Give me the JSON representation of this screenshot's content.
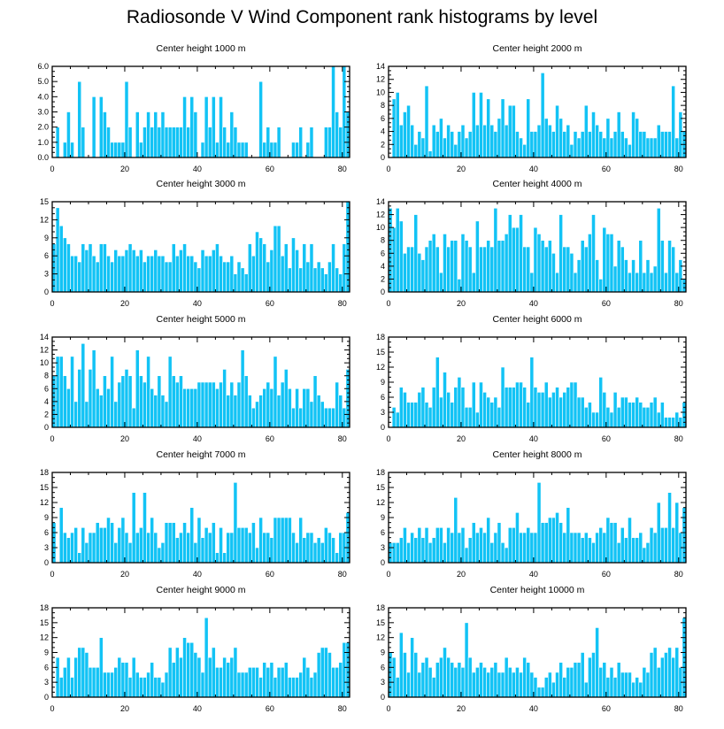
{
  "page": {
    "title": "Radiosonde V Wind Component rank histograms by level"
  },
  "chart_data": [
    {
      "type": "bar",
      "title": "Center height 1000 m",
      "xlim": [
        0,
        82
      ],
      "ylim": [
        0,
        6
      ],
      "xticks": [
        0,
        20,
        40,
        60,
        80
      ],
      "yticks": [
        "0.0",
        "1.0",
        "2.0",
        "3.0",
        "4.0",
        "5.0",
        "6.0"
      ],
      "values": [
        0,
        2,
        0,
        1,
        3,
        1,
        0,
        5,
        2,
        0,
        0,
        4,
        0,
        4,
        3,
        2,
        1,
        1,
        1,
        1,
        5,
        2,
        0,
        3,
        1,
        2,
        3,
        2,
        3,
        2,
        3,
        2,
        2,
        2,
        2,
        2,
        4,
        2,
        4,
        3,
        0,
        1,
        4,
        2,
        4,
        1,
        4,
        2,
        1,
        3,
        2,
        1,
        1,
        1,
        0,
        0,
        0,
        5,
        1,
        2,
        1,
        1,
        2,
        0,
        0,
        0,
        1,
        1,
        2,
        0,
        1,
        2,
        0,
        0,
        0,
        2,
        2,
        6,
        3,
        2,
        6,
        3
      ]
    },
    {
      "type": "bar",
      "title": "Center height 2000 m",
      "xlim": [
        0,
        82
      ],
      "ylim": [
        0,
        14
      ],
      "xticks": [
        0,
        20,
        40,
        60,
        80
      ],
      "yticks": [
        "0",
        "2",
        "4",
        "6",
        "8",
        "10",
        "12",
        "14"
      ],
      "values": [
        0,
        9,
        10,
        5,
        7,
        8,
        5,
        2,
        4,
        3,
        11,
        1,
        5,
        4,
        6,
        3,
        5,
        4,
        2,
        4,
        5,
        3,
        4,
        10,
        5,
        10,
        5,
        9,
        5,
        4,
        6,
        9,
        5,
        8,
        8,
        4,
        3,
        2,
        9,
        4,
        4,
        5,
        13,
        6,
        5,
        4,
        8,
        6,
        4,
        5,
        2,
        4,
        3,
        4,
        8,
        4,
        7,
        5,
        4,
        3,
        6,
        3,
        4,
        7,
        4,
        3,
        2,
        7,
        6,
        4,
        4,
        3,
        3,
        3,
        5,
        4,
        4,
        4,
        11,
        3,
        7,
        4
      ]
    },
    {
      "type": "bar",
      "title": "Center height 3000 m",
      "xlim": [
        0,
        82
      ],
      "ylim": [
        0,
        15
      ],
      "xticks": [
        0,
        20,
        40,
        60,
        80
      ],
      "yticks": [
        "0",
        "3",
        "6",
        "9",
        "12",
        "15"
      ],
      "values": [
        8,
        14,
        11,
        9,
        8,
        6,
        6,
        5,
        8,
        7,
        8,
        6,
        5,
        8,
        8,
        6,
        5,
        7,
        6,
        6,
        7,
        8,
        7,
        6,
        7,
        5,
        6,
        6,
        7,
        6,
        6,
        5,
        5,
        8,
        6,
        7,
        8,
        6,
        6,
        5,
        4,
        7,
        6,
        6,
        7,
        8,
        6,
        5,
        5,
        6,
        3,
        5,
        4,
        3,
        8,
        6,
        10,
        9,
        8,
        5,
        7,
        11,
        11,
        6,
        8,
        4,
        9,
        7,
        4,
        8,
        5,
        8,
        4,
        5,
        4,
        3,
        5,
        8,
        4,
        3,
        8,
        15
      ]
    },
    {
      "type": "bar",
      "title": "Center height 4000 m",
      "xlim": [
        0,
        82
      ],
      "ylim": [
        0,
        14
      ],
      "xticks": [
        0,
        20,
        40,
        60,
        80
      ],
      "yticks": [
        "0",
        "2",
        "4",
        "6",
        "8",
        "10",
        "12",
        "14"
      ],
      "values": [
        13,
        10,
        13,
        11,
        6,
        7,
        7,
        12,
        6,
        5,
        7,
        8,
        9,
        7,
        3,
        9,
        7,
        8,
        8,
        2,
        9,
        8,
        7,
        3,
        11,
        7,
        7,
        8,
        7,
        13,
        8,
        8,
        9,
        12,
        10,
        10,
        12,
        7,
        7,
        3,
        10,
        9,
        8,
        7,
        8,
        6,
        3,
        12,
        7,
        7,
        6,
        3,
        5,
        8,
        7,
        9,
        12,
        5,
        2,
        10,
        9,
        9,
        4,
        8,
        7,
        5,
        3,
        5,
        3,
        8,
        3,
        5,
        3,
        4,
        13,
        8,
        3,
        8,
        7,
        3,
        5,
        2
      ]
    },
    {
      "type": "bar",
      "title": "Center height 5000 m",
      "xlim": [
        0,
        82
      ],
      "ylim": [
        0,
        14
      ],
      "xticks": [
        0,
        20,
        40,
        60,
        80
      ],
      "yticks": [
        "0",
        "2",
        "4",
        "6",
        "8",
        "10",
        "12",
        "14"
      ],
      "values": [
        8,
        11,
        11,
        8,
        6,
        11,
        4,
        9,
        13,
        4,
        9,
        12,
        6,
        5,
        8,
        6,
        11,
        4,
        7,
        8,
        9,
        8,
        3,
        12,
        8,
        7,
        11,
        6,
        5,
        8,
        5,
        4,
        11,
        8,
        7,
        8,
        6,
        6,
        6,
        6,
        7,
        7,
        7,
        7,
        7,
        6,
        7,
        9,
        5,
        7,
        5,
        7,
        12,
        8,
        5,
        3,
        4,
        5,
        6,
        7,
        6,
        11,
        5,
        7,
        9,
        6,
        3,
        6,
        3,
        6,
        6,
        4,
        8,
        5,
        4,
        3,
        3,
        3,
        7,
        5,
        3,
        9
      ]
    },
    {
      "type": "bar",
      "title": "Center height 6000 m",
      "xlim": [
        0,
        82
      ],
      "ylim": [
        0,
        18
      ],
      "xticks": [
        0,
        20,
        40,
        60,
        80
      ],
      "yticks": [
        "0",
        "3",
        "6",
        "9",
        "12",
        "15",
        "18"
      ],
      "values": [
        0,
        4,
        3,
        8,
        7,
        5,
        5,
        5,
        7,
        8,
        5,
        4,
        8,
        14,
        6,
        11,
        7,
        5,
        8,
        10,
        8,
        4,
        4,
        9,
        3,
        9,
        7,
        6,
        5,
        6,
        4,
        12,
        8,
        8,
        8,
        9,
        9,
        8,
        5,
        14,
        8,
        7,
        7,
        9,
        6,
        7,
        8,
        6,
        7,
        8,
        9,
        9,
        6,
        6,
        4,
        5,
        3,
        3,
        10,
        7,
        4,
        3,
        7,
        4,
        6,
        6,
        5,
        5,
        6,
        5,
        4,
        4,
        5,
        6,
        3,
        5,
        2,
        2,
        2,
        3,
        2,
        5
      ]
    },
    {
      "type": "bar",
      "title": "Center height 7000 m",
      "xlim": [
        0,
        82
      ],
      "ylim": [
        0,
        18
      ],
      "xticks": [
        0,
        20,
        40,
        60,
        80
      ],
      "yticks": [
        "0",
        "3",
        "6",
        "9",
        "12",
        "15",
        "18"
      ],
      "values": [
        8,
        0,
        11,
        6,
        5,
        6,
        7,
        2,
        7,
        4,
        6,
        6,
        8,
        7,
        7,
        9,
        8,
        4,
        7,
        9,
        6,
        4,
        14,
        6,
        7,
        14,
        6,
        9,
        6,
        3,
        4,
        8,
        8,
        8,
        5,
        6,
        8,
        6,
        11,
        4,
        9,
        5,
        7,
        6,
        8,
        2,
        7,
        2,
        6,
        6,
        16,
        7,
        7,
        7,
        6,
        8,
        3,
        9,
        6,
        6,
        5,
        9,
        9,
        9,
        9,
        9,
        6,
        4,
        9,
        5,
        6,
        6,
        4,
        5,
        4,
        7,
        6,
        5,
        2,
        6,
        6,
        10
      ]
    },
    {
      "type": "bar",
      "title": "Center height 8000 m",
      "xlim": [
        0,
        82
      ],
      "ylim": [
        0,
        18
      ],
      "xticks": [
        0,
        20,
        40,
        60,
        80
      ],
      "yticks": [
        "0",
        "3",
        "6",
        "9",
        "12",
        "15",
        "18"
      ],
      "values": [
        4,
        4,
        4,
        5,
        7,
        4,
        6,
        5,
        7,
        5,
        7,
        4,
        5,
        7,
        7,
        4,
        7,
        6,
        13,
        6,
        7,
        3,
        5,
        8,
        6,
        7,
        6,
        9,
        4,
        6,
        8,
        4,
        3,
        7,
        7,
        10,
        6,
        6,
        7,
        6,
        6,
        16,
        8,
        8,
        9,
        9,
        10,
        8,
        6,
        11,
        6,
        6,
        6,
        5,
        6,
        5,
        4,
        6,
        7,
        6,
        9,
        8,
        8,
        4,
        7,
        5,
        9,
        5,
        5,
        6,
        3,
        4,
        7,
        6,
        12,
        7,
        7,
        14,
        7,
        12,
        6,
        11
      ]
    },
    {
      "type": "bar",
      "title": "Center height 9000 m",
      "xlim": [
        0,
        82
      ],
      "ylim": [
        0,
        18
      ],
      "xticks": [
        0,
        20,
        40,
        60,
        80
      ],
      "yticks": [
        "0",
        "3",
        "6",
        "9",
        "12",
        "15",
        "18"
      ],
      "values": [
        0,
        8,
        4,
        6,
        8,
        4,
        8,
        10,
        10,
        9,
        6,
        6,
        6,
        12,
        5,
        5,
        5,
        6,
        8,
        7,
        7,
        4,
        8,
        5,
        4,
        4,
        5,
        7,
        4,
        4,
        3,
        5,
        10,
        7,
        10,
        8,
        12,
        11,
        11,
        9,
        8,
        5,
        16,
        8,
        10,
        6,
        6,
        8,
        7,
        8,
        10,
        5,
        5,
        5,
        6,
        6,
        6,
        4,
        7,
        6,
        7,
        4,
        6,
        6,
        7,
        4,
        4,
        4,
        5,
        8,
        6,
        4,
        5,
        9,
        10,
        10,
        9,
        6,
        6,
        7,
        11,
        11
      ]
    },
    {
      "type": "bar",
      "title": "Center height 10000 m",
      "xlim": [
        0,
        82
      ],
      "ylim": [
        0,
        18
      ],
      "xticks": [
        0,
        20,
        40,
        60,
        80
      ],
      "yticks": [
        "0",
        "3",
        "6",
        "9",
        "12",
        "15",
        "18"
      ],
      "values": [
        9,
        8,
        4,
        13,
        9,
        5,
        12,
        9,
        5,
        7,
        8,
        6,
        4,
        7,
        8,
        10,
        8,
        7,
        6,
        7,
        6,
        15,
        8,
        5,
        6,
        7,
        6,
        5,
        6,
        7,
        5,
        5,
        8,
        6,
        5,
        6,
        5,
        8,
        7,
        5,
        4,
        2,
        2,
        4,
        5,
        3,
        5,
        7,
        4,
        6,
        6,
        7,
        7,
        9,
        3,
        8,
        9,
        14,
        6,
        7,
        4,
        6,
        4,
        7,
        5,
        5,
        5,
        3,
        4,
        3,
        6,
        5,
        9,
        10,
        6,
        8,
        9,
        10,
        8,
        10,
        6,
        16
      ]
    }
  ],
  "style": {
    "bar_color": "#12c3f5",
    "bar_edge": "#ffffff",
    "axis_color": "#000000"
  }
}
